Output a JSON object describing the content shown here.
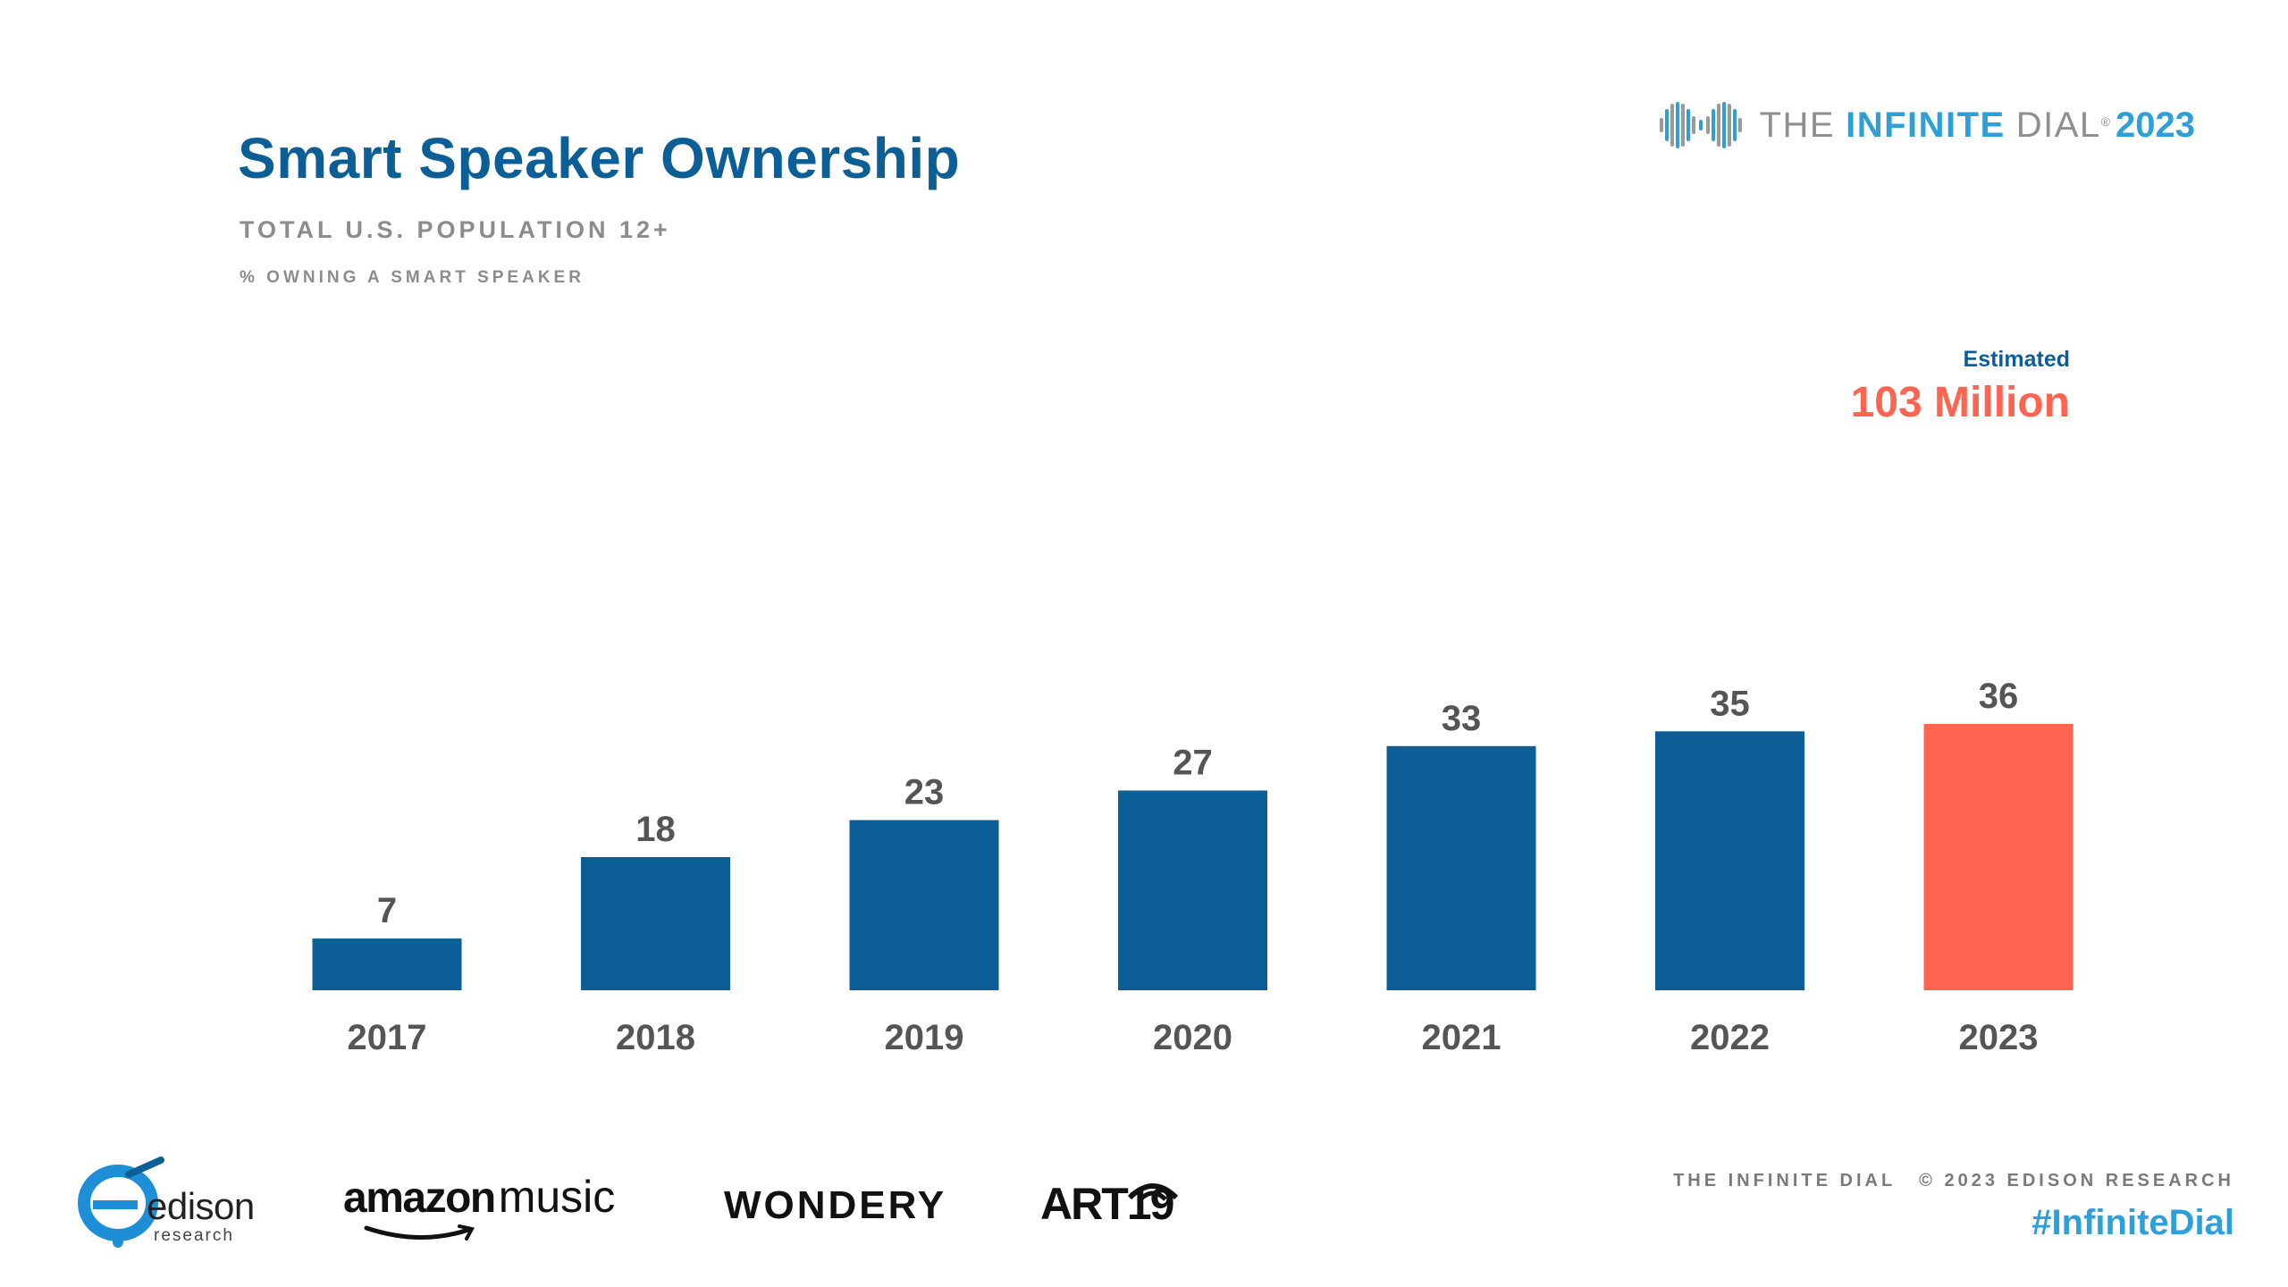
{
  "header": {
    "title": "Smart Speaker Ownership",
    "subtitle": "TOTAL U.S. POPULATION 12+",
    "measure": "% OWNING A SMART SPEAKER"
  },
  "brand": {
    "the": "THE",
    "infinite": "INFINITE",
    "dial": "DIAL",
    "reg": "®",
    "year": "2023",
    "icon": "infinity-wave-icon"
  },
  "estimate": {
    "label": "Estimated",
    "value": "103 Million"
  },
  "chart_data": {
    "type": "bar",
    "categories": [
      "2017",
      "2018",
      "2019",
      "2020",
      "2021",
      "2022",
      "2023"
    ],
    "values": [
      7,
      18,
      23,
      27,
      33,
      35,
      36
    ],
    "highlight_index": 6,
    "ylim": [
      0,
      36
    ],
    "grid": false,
    "legend": "none",
    "data_labels": true,
    "colors": {
      "bar": "#0c5e96",
      "highlight": "#ff6450",
      "value_label": "#555555",
      "category_label": "#555555"
    }
  },
  "footer": {
    "logos": {
      "edison": {
        "word": "edison",
        "sub": "research",
        "icon": "edison-swirl-icon"
      },
      "amazon": {
        "word1": "amazon",
        "word2": "music",
        "icon": "amazon-smile-icon"
      },
      "wondery": {
        "word": "WONDERY"
      },
      "art19": {
        "word": "ART19",
        "icon": "signal-arc-icon"
      }
    },
    "credit_left": "THE INFINITE DIAL",
    "credit_right": "© 2023 EDISON RESEARCH",
    "hashtag": "#InfiniteDial"
  },
  "colors": {
    "title": "#0c5e96",
    "accent": "#ff6450",
    "brand_blue": "#2f9fd8",
    "gray_text": "#8c8c8c"
  }
}
